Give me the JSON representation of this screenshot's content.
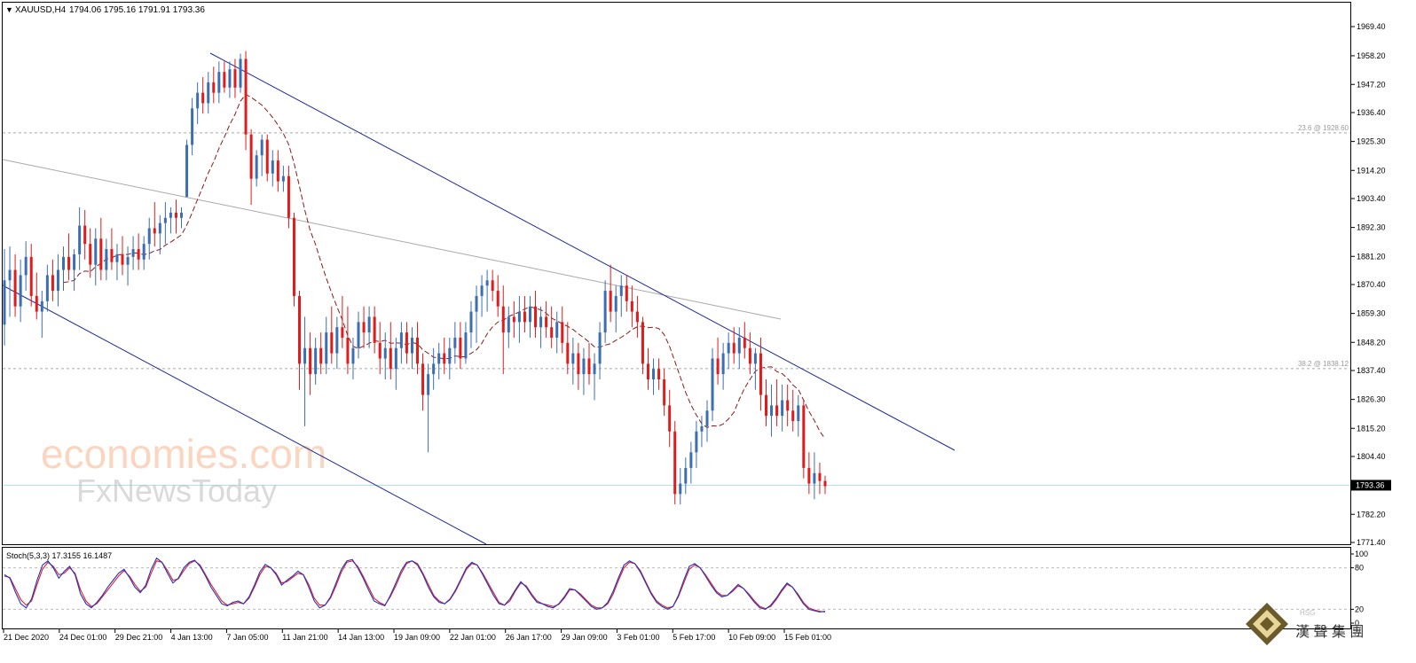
{
  "header": {
    "symbol": "XAUUSD,H4",
    "ohlc": "1794.06 1795.16 1791.91 1793.36"
  },
  "stoch_header": "Stoch(5,3,3) 17.3155 16.1487",
  "watermark": {
    "line1": "economies.com",
    "line2": "FxNewsToday"
  },
  "logo": {
    "text": "漢 聲 集 團",
    "small_text": "HSG"
  },
  "colors": {
    "bull": "#3C6EB4",
    "bear": "#E11B1B",
    "channel": "#1E2A9C",
    "ma": "#8B1A1A",
    "grey_trend": "#A9A9A9",
    "fib": "#A8A8A8",
    "current_price": "#AEE4EE",
    "stoch_main": "#2233CC",
    "stoch_signal": "#E02020"
  },
  "chart_data": [
    {
      "type": "candlestick",
      "instrument": "XAUUSD",
      "timeframe": "H4",
      "y_axis": {
        "ticks": [
          "1969.40",
          "1958.20",
          "1947.20",
          "1936.40",
          "1925.30",
          "1914.20",
          "1903.40",
          "1892.30",
          "1881.20",
          "1870.40",
          "1859.30",
          "1848.20",
          "1837.40",
          "1826.30",
          "1815.20",
          "1804.40",
          "1782.20",
          "1771.40"
        ],
        "range": [
          1768.5,
          1975.5
        ]
      },
      "x_axis": {
        "ticks": [
          "21 Dec 2020",
          "24 Dec 01:00",
          "29 Dec 21:00",
          "4 Jan 13:00",
          "7 Jan 05:00",
          "11 Jan 21:00",
          "14 Jan 13:00",
          "19 Jan 09:00",
          "22 Jan 01:00",
          "26 Jan 17:00",
          "29 Jan 09:00",
          "3 Feb 01:00",
          "5 Feb 17:00",
          "10 Feb 09:00",
          "15 Feb 01:00"
        ]
      },
      "current_price": "1793.36",
      "fib_levels": [
        {
          "label": "23.6 @ 1928.60",
          "price": 1928.6
        },
        {
          "label": "38.2 @ 1838.12",
          "price": 1838.12
        }
      ],
      "ohlc": [
        [
          1855,
          1884,
          1847,
          1872
        ],
        [
          1872,
          1885,
          1858,
          1876
        ],
        [
          1876,
          1882,
          1858,
          1862
        ],
        [
          1862,
          1880,
          1856,
          1874
        ],
        [
          1874,
          1887,
          1868,
          1881
        ],
        [
          1881,
          1886,
          1862,
          1866
        ],
        [
          1866,
          1875,
          1857,
          1860
        ],
        [
          1860,
          1868,
          1850,
          1864
        ],
        [
          1864,
          1878,
          1860,
          1874
        ],
        [
          1874,
          1880,
          1864,
          1868
        ],
        [
          1868,
          1882,
          1862,
          1876
        ],
        [
          1876,
          1885,
          1868,
          1881
        ],
        [
          1881,
          1890,
          1872,
          1876
        ],
        [
          1876,
          1884,
          1868,
          1882
        ],
        [
          1882,
          1900,
          1876,
          1893
        ],
        [
          1893,
          1899,
          1880,
          1886
        ],
        [
          1886,
          1892,
          1873,
          1878
        ],
        [
          1878,
          1892,
          1870,
          1888
        ],
        [
          1888,
          1896,
          1872,
          1876
        ],
        [
          1876,
          1888,
          1872,
          1884
        ],
        [
          1884,
          1892,
          1876,
          1879
        ],
        [
          1879,
          1886,
          1872,
          1882
        ],
        [
          1882,
          1889,
          1874,
          1878
        ],
        [
          1878,
          1885,
          1870,
          1881
        ],
        [
          1881,
          1889,
          1876,
          1884
        ],
        [
          1884,
          1890,
          1876,
          1880
        ],
        [
          1880,
          1889,
          1876,
          1886
        ],
        [
          1886,
          1896,
          1880,
          1892
        ],
        [
          1892,
          1902,
          1885,
          1890
        ],
        [
          1890,
          1897,
          1882,
          1894
        ],
        [
          1894,
          1902,
          1886,
          1896
        ],
        [
          1896,
          1900,
          1890,
          1898
        ],
        [
          1898,
          1903,
          1890,
          1896
        ],
        [
          1896,
          1900,
          1892,
          1898
        ],
        [
          1904,
          1926,
          1904,
          1924
        ],
        [
          1924,
          1942,
          1920,
          1938
        ],
        [
          1938,
          1948,
          1932,
          1944
        ],
        [
          1944,
          1950,
          1936,
          1940
        ],
        [
          1940,
          1952,
          1936,
          1948
        ],
        [
          1948,
          1954,
          1940,
          1944
        ],
        [
          1944,
          1956,
          1940,
          1952
        ],
        [
          1952,
          1956,
          1944,
          1946
        ],
        [
          1946,
          1956,
          1942,
          1953
        ],
        [
          1953,
          1957,
          1942,
          1946
        ],
        [
          1946,
          1959,
          1944,
          1957
        ],
        [
          1957,
          1960,
          1922,
          1928
        ],
        [
          1928,
          1930,
          1901,
          1911
        ],
        [
          1911,
          1922,
          1908,
          1920
        ],
        [
          1920,
          1928,
          1912,
          1926
        ],
        [
          1926,
          1928,
          1910,
          1913
        ],
        [
          1913,
          1922,
          1908,
          1918
        ],
        [
          1918,
          1922,
          1906,
          1910
        ],
        [
          1910,
          1916,
          1906,
          1912
        ],
        [
          1912,
          1916,
          1892,
          1896
        ],
        [
          1896,
          1898,
          1862,
          1866
        ],
        [
          1866,
          1868,
          1830,
          1840
        ],
        [
          1840,
          1858,
          1816,
          1846
        ],
        [
          1846,
          1852,
          1828,
          1836
        ],
        [
          1836,
          1850,
          1832,
          1846
        ],
        [
          1846,
          1852,
          1836,
          1840
        ],
        [
          1840,
          1858,
          1836,
          1852
        ],
        [
          1852,
          1862,
          1840,
          1844
        ],
        [
          1844,
          1858,
          1838,
          1854
        ],
        [
          1854,
          1866,
          1846,
          1850
        ],
        [
          1850,
          1862,
          1836,
          1840
        ],
        [
          1840,
          1850,
          1834,
          1846
        ],
        [
          1846,
          1860,
          1842,
          1856
        ],
        [
          1856,
          1862,
          1846,
          1852
        ],
        [
          1852,
          1862,
          1846,
          1858
        ],
        [
          1858,
          1862,
          1844,
          1848
        ],
        [
          1848,
          1856,
          1836,
          1842
        ],
        [
          1842,
          1852,
          1834,
          1846
        ],
        [
          1846,
          1856,
          1834,
          1838
        ],
        [
          1838,
          1850,
          1830,
          1846
        ],
        [
          1846,
          1856,
          1840,
          1852
        ],
        [
          1852,
          1856,
          1840,
          1844
        ],
        [
          1844,
          1854,
          1838,
          1850
        ],
        [
          1850,
          1856,
          1836,
          1840
        ],
        [
          1840,
          1844,
          1822,
          1828
        ],
        [
          1828,
          1840,
          1806,
          1836
        ],
        [
          1836,
          1846,
          1830,
          1840
        ],
        [
          1840,
          1848,
          1834,
          1844
        ],
        [
          1844,
          1850,
          1836,
          1840
        ],
        [
          1840,
          1850,
          1834,
          1846
        ],
        [
          1846,
          1856,
          1840,
          1850
        ],
        [
          1850,
          1856,
          1838,
          1842
        ],
        [
          1842,
          1856,
          1840,
          1852
        ],
        [
          1852,
          1864,
          1846,
          1860
        ],
        [
          1860,
          1870,
          1848,
          1866
        ],
        [
          1866,
          1874,
          1858,
          1870
        ],
        [
          1870,
          1876,
          1860,
          1872
        ],
        [
          1872,
          1876,
          1864,
          1868
        ],
        [
          1868,
          1874,
          1858,
          1862
        ],
        [
          1862,
          1870,
          1836,
          1852
        ],
        [
          1852,
          1862,
          1846,
          1858
        ],
        [
          1858,
          1864,
          1850,
          1856
        ],
        [
          1856,
          1866,
          1848,
          1860
        ],
        [
          1860,
          1866,
          1852,
          1856
        ],
        [
          1856,
          1866,
          1850,
          1862
        ],
        [
          1862,
          1868,
          1850,
          1854
        ],
        [
          1854,
          1862,
          1846,
          1858
        ],
        [
          1858,
          1864,
          1850,
          1854
        ],
        [
          1854,
          1862,
          1846,
          1850
        ],
        [
          1850,
          1860,
          1844,
          1856
        ],
        [
          1856,
          1862,
          1844,
          1848
        ],
        [
          1848,
          1856,
          1836,
          1840
        ],
        [
          1840,
          1850,
          1832,
          1844
        ],
        [
          1844,
          1848,
          1830,
          1836
        ],
        [
          1836,
          1846,
          1828,
          1842
        ],
        [
          1842,
          1848,
          1832,
          1836
        ],
        [
          1836,
          1844,
          1826,
          1840
        ],
        [
          1840,
          1856,
          1834,
          1852
        ],
        [
          1852,
          1872,
          1848,
          1868
        ],
        [
          1868,
          1878,
          1856,
          1860
        ],
        [
          1860,
          1870,
          1852,
          1866
        ],
        [
          1866,
          1874,
          1858,
          1870
        ],
        [
          1870,
          1874,
          1860,
          1864
        ],
        [
          1864,
          1870,
          1854,
          1860
        ],
        [
          1860,
          1866,
          1850,
          1856
        ],
        [
          1856,
          1858,
          1836,
          1840
        ],
        [
          1840,
          1846,
          1830,
          1834
        ],
        [
          1834,
          1842,
          1828,
          1838
        ],
        [
          1838,
          1842,
          1830,
          1834
        ],
        [
          1834,
          1838,
          1820,
          1824
        ],
        [
          1824,
          1830,
          1808,
          1814
        ],
        [
          1814,
          1818,
          1786,
          1790
        ],
        [
          1790,
          1800,
          1786,
          1794
        ],
        [
          1794,
          1804,
          1790,
          1800
        ],
        [
          1800,
          1810,
          1794,
          1806
        ],
        [
          1806,
          1818,
          1800,
          1814
        ],
        [
          1814,
          1820,
          1808,
          1816
        ],
        [
          1816,
          1826,
          1810,
          1822
        ],
        [
          1822,
          1846,
          1818,
          1842
        ],
        [
          1842,
          1850,
          1832,
          1836
        ],
        [
          1836,
          1848,
          1830,
          1844
        ],
        [
          1844,
          1852,
          1838,
          1848
        ],
        [
          1848,
          1854,
          1840,
          1844
        ],
        [
          1844,
          1854,
          1838,
          1850
        ],
        [
          1850,
          1856,
          1842,
          1846
        ],
        [
          1846,
          1852,
          1836,
          1840
        ],
        [
          1840,
          1846,
          1830,
          1844
        ],
        [
          1844,
          1850,
          1822,
          1828
        ],
        [
          1828,
          1834,
          1816,
          1820
        ],
        [
          1820,
          1832,
          1812,
          1824
        ],
        [
          1824,
          1834,
          1816,
          1820
        ],
        [
          1820,
          1832,
          1814,
          1826
        ],
        [
          1826,
          1832,
          1816,
          1822
        ],
        [
          1822,
          1830,
          1814,
          1818
        ],
        [
          1818,
          1828,
          1812,
          1824
        ],
        [
          1824,
          1826,
          1796,
          1800
        ],
        [
          1800,
          1806,
          1790,
          1794
        ],
        [
          1794,
          1806,
          1788,
          1798
        ],
        [
          1798,
          1802,
          1790,
          1795
        ],
        [
          1795,
          1797,
          1790,
          1793
        ]
      ]
    },
    {
      "type": "line",
      "indicator": "Stoch(5,3,3)",
      "levels": [
        "100",
        "80",
        "20",
        "0"
      ],
      "series": [
        {
          "name": "%K",
          "values": [
            70,
            65,
            45,
            28,
            22,
            35,
            62,
            84,
            90,
            80,
            65,
            75,
            82,
            70,
            42,
            28,
            22,
            30,
            40,
            52,
            62,
            72,
            78,
            66,
            52,
            44,
            55,
            78,
            94,
            88,
            72,
            58,
            65,
            80,
            88,
            91,
            82,
            68,
            52,
            40,
            28,
            25,
            30,
            32,
            28,
            38,
            55,
            74,
            85,
            80,
            70,
            55,
            62,
            68,
            75,
            70,
            52,
            32,
            22,
            26,
            38,
            58,
            78,
            90,
            92,
            80,
            65,
            48,
            32,
            28,
            25,
            40,
            58,
            76,
            88,
            90,
            84,
            70,
            52,
            38,
            30,
            28,
            35,
            48,
            64,
            80,
            88,
            84,
            70,
            55,
            40,
            28,
            26,
            35,
            48,
            60,
            52,
            40,
            30,
            28,
            24,
            22,
            28,
            38,
            50,
            48,
            40,
            32,
            24,
            20,
            22,
            30,
            46,
            66,
            84,
            90,
            86,
            74,
            58,
            42,
            30,
            24,
            20,
            24,
            40,
            62,
            82,
            86,
            80,
            68,
            55,
            44,
            38,
            40,
            48,
            56,
            50,
            40,
            30,
            22,
            20,
            26,
            36,
            48,
            58,
            52,
            40,
            28,
            20,
            18,
            16,
            17
          ]
        },
        {
          "name": "%D",
          "values": [
            68,
            66,
            50,
            34,
            26,
            32,
            56,
            78,
            88,
            82,
            70,
            72,
            80,
            72,
            48,
            32,
            24,
            28,
            38,
            48,
            58,
            68,
            76,
            68,
            56,
            46,
            52,
            72,
            90,
            88,
            76,
            62,
            64,
            76,
            86,
            90,
            84,
            70,
            56,
            44,
            32,
            26,
            28,
            30,
            28,
            36,
            52,
            70,
            82,
            80,
            72,
            58,
            60,
            66,
            72,
            70,
            56,
            36,
            26,
            26,
            36,
            54,
            74,
            88,
            90,
            82,
            68,
            52,
            36,
            30,
            26,
            38,
            54,
            72,
            86,
            90,
            86,
            72,
            56,
            40,
            32,
            28,
            34,
            46,
            62,
            78,
            86,
            84,
            72,
            58,
            44,
            30,
            26,
            32,
            46,
            58,
            54,
            42,
            32,
            28,
            26,
            24,
            27,
            36,
            48,
            48,
            42,
            34,
            26,
            22,
            22,
            28,
            42,
            62,
            80,
            88,
            86,
            76,
            60,
            44,
            32,
            26,
            22,
            24,
            38,
            58,
            78,
            84,
            80,
            70,
            58,
            46,
            40,
            40,
            46,
            54,
            50,
            42,
            32,
            24,
            21,
            24,
            34,
            46,
            56,
            52,
            42,
            30,
            22,
            19,
            17,
            16
          ]
        }
      ]
    }
  ]
}
